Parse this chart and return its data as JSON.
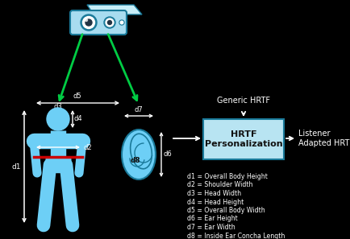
{
  "bg_color": "#000000",
  "light_blue": "#6DCFF6",
  "dark_blue": "#1A7A9A",
  "cam_body_fill": "#A8DCF0",
  "cam_back_fill": "#C8EEF8",
  "green_arrow": "#00CC44",
  "box_fill": "#B8E4F2",
  "box_edge": "#1A7A9A",
  "white": "#FFFFFF",
  "dark_text": "#111111",
  "legend_lines": [
    "d1 = Overall Body Height",
    "d2 = Shoulder Width",
    "d3 = Head Width",
    "d4 = Head Height",
    "d5 = Overall Body Width",
    "d6 = Ear Height",
    "d7 = Ear Width",
    "d8 = Inside Ear Concha Length"
  ],
  "box_label": "HRTF\nPersonalization",
  "generic_hrtf": "Generic HRTF",
  "listener_adapted": "Listener\nAdapted HRTF",
  "figsize": [
    4.35,
    2.97
  ],
  "dpi": 100
}
